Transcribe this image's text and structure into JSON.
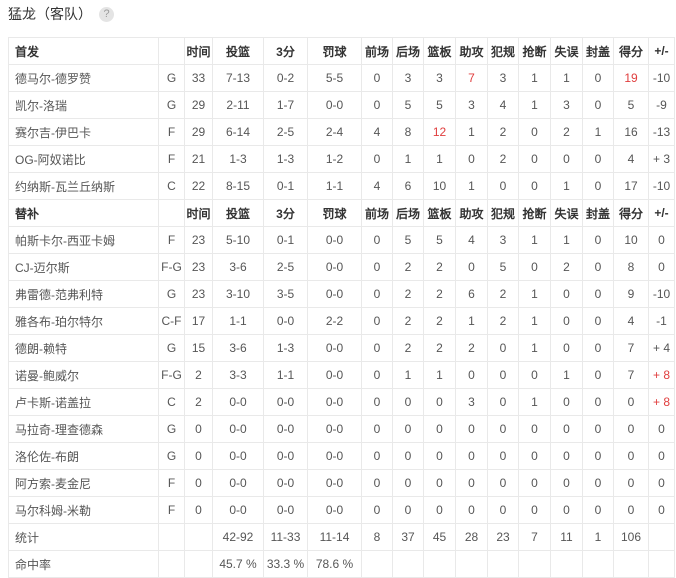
{
  "header": {
    "title": "猛龙（客队）",
    "help_icon": "?"
  },
  "colors": {
    "highlight_red": "#e03e3e",
    "grid_line": "#e9e9e9",
    "text": "#565656",
    "header_text": "#333333"
  },
  "table": {
    "columns": [
      "时间",
      "投篮",
      "3分",
      "罚球",
      "前场",
      "后场",
      "篮板",
      "助攻",
      "犯规",
      "抢断",
      "失误",
      "封盖",
      "得分",
      "+/-"
    ],
    "sections": [
      {
        "label": "首发",
        "rows": [
          {
            "name": "德马尔-德罗赞",
            "pos": "G",
            "stats": [
              "33",
              "7-13",
              "0-2",
              "5-5",
              "0",
              "3",
              "3",
              "7",
              "3",
              "1",
              "1",
              "0",
              "19",
              "-10"
            ],
            "red": [
              7,
              12
            ]
          },
          {
            "name": "凯尔-洛瑞",
            "pos": "G",
            "stats": [
              "29",
              "2-11",
              "1-7",
              "0-0",
              "0",
              "5",
              "5",
              "3",
              "4",
              "1",
              "3",
              "0",
              "5",
              "-9"
            ],
            "red": []
          },
          {
            "name": "赛尔吉-伊巴卡",
            "pos": "F",
            "stats": [
              "29",
              "6-14",
              "2-5",
              "2-4",
              "4",
              "8",
              "12",
              "1",
              "2",
              "0",
              "2",
              "1",
              "16",
              "-13"
            ],
            "red": [
              6
            ]
          },
          {
            "name": "OG-阿奴诺比",
            "pos": "F",
            "stats": [
              "21",
              "1-3",
              "1-3",
              "1-2",
              "0",
              "1",
              "1",
              "0",
              "2",
              "0",
              "0",
              "0",
              "4",
              "+ 3"
            ],
            "red": []
          },
          {
            "name": "约纳斯-瓦兰丘纳斯",
            "pos": "C",
            "stats": [
              "22",
              "8-15",
              "0-1",
              "1-1",
              "4",
              "6",
              "10",
              "1",
              "0",
              "0",
              "1",
              "0",
              "17",
              "-10"
            ],
            "red": []
          }
        ]
      },
      {
        "label": "替补",
        "rows": [
          {
            "name": "帕斯卡尔-西亚卡姆",
            "pos": "F",
            "stats": [
              "23",
              "5-10",
              "0-1",
              "0-0",
              "0",
              "5",
              "5",
              "4",
              "3",
              "1",
              "1",
              "0",
              "10",
              "0"
            ],
            "red": []
          },
          {
            "name": "CJ-迈尔斯",
            "pos": "F-G",
            "stats": [
              "23",
              "3-6",
              "2-5",
              "0-0",
              "0",
              "2",
              "2",
              "0",
              "5",
              "0",
              "2",
              "0",
              "8",
              "0"
            ],
            "red": []
          },
          {
            "name": "弗雷德-范弗利特",
            "pos": "G",
            "stats": [
              "23",
              "3-10",
              "3-5",
              "0-0",
              "0",
              "2",
              "2",
              "6",
              "2",
              "1",
              "0",
              "0",
              "9",
              "-10"
            ],
            "red": []
          },
          {
            "name": "雅各布-珀尔特尔",
            "pos": "C-F",
            "stats": [
              "17",
              "1-1",
              "0-0",
              "2-2",
              "0",
              "2",
              "2",
              "1",
              "2",
              "1",
              "0",
              "0",
              "4",
              "-1"
            ],
            "red": []
          },
          {
            "name": "德朗-赖特",
            "pos": "G",
            "stats": [
              "15",
              "3-6",
              "1-3",
              "0-0",
              "0",
              "2",
              "2",
              "2",
              "0",
              "1",
              "0",
              "0",
              "7",
              "+ 4"
            ],
            "red": []
          },
          {
            "name": "诺曼-鲍威尔",
            "pos": "F-G",
            "stats": [
              "2",
              "3-3",
              "1-1",
              "0-0",
              "0",
              "1",
              "1",
              "0",
              "0",
              "0",
              "1",
              "0",
              "7",
              "+ 8"
            ],
            "red": [
              13
            ]
          },
          {
            "name": "卢卡斯-诺盖拉",
            "pos": "C",
            "stats": [
              "2",
              "0-0",
              "0-0",
              "0-0",
              "0",
              "0",
              "0",
              "3",
              "0",
              "1",
              "0",
              "0",
              "0",
              "+ 8"
            ],
            "red": [
              13
            ]
          },
          {
            "name": "马拉奇-理查德森",
            "pos": "G",
            "stats": [
              "0",
              "0-0",
              "0-0",
              "0-0",
              "0",
              "0",
              "0",
              "0",
              "0",
              "0",
              "0",
              "0",
              "0",
              "0"
            ],
            "red": []
          },
          {
            "name": "洛伦佐-布朗",
            "pos": "G",
            "stats": [
              "0",
              "0-0",
              "0-0",
              "0-0",
              "0",
              "0",
              "0",
              "0",
              "0",
              "0",
              "0",
              "0",
              "0",
              "0"
            ],
            "red": []
          },
          {
            "name": "阿方索-麦金尼",
            "pos": "F",
            "stats": [
              "0",
              "0-0",
              "0-0",
              "0-0",
              "0",
              "0",
              "0",
              "0",
              "0",
              "0",
              "0",
              "0",
              "0",
              "0"
            ],
            "red": []
          },
          {
            "name": "马尔科姆-米勒",
            "pos": "F",
            "stats": [
              "0",
              "0-0",
              "0-0",
              "0-0",
              "0",
              "0",
              "0",
              "0",
              "0",
              "0",
              "0",
              "0",
              "0",
              "0"
            ],
            "red": []
          }
        ]
      }
    ],
    "footer": [
      {
        "label": "统计",
        "stats": [
          "",
          "42-92",
          "11-33",
          "11-14",
          "8",
          "37",
          "45",
          "28",
          "23",
          "7",
          "11",
          "1",
          "106",
          ""
        ]
      },
      {
        "label": "命中率",
        "stats": [
          "",
          "45.7 %",
          "33.3 %",
          "78.6 %",
          "",
          "",
          "",
          "",
          "",
          "",
          "",
          "",
          "",
          ""
        ]
      }
    ]
  }
}
